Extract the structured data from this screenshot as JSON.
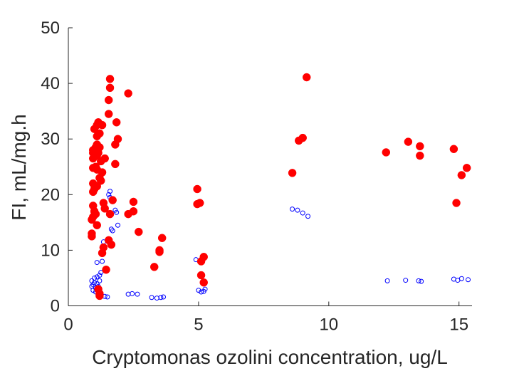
{
  "chart_data": {
    "type": "scatter",
    "xlabel": "Cryptomonas ozolini concentration, ug/L",
    "ylabel": "FI, mL/mg.h",
    "xlim": [
      0,
      15.5
    ],
    "ylim": [
      0,
      50
    ],
    "xticks": [
      0,
      5,
      10,
      15
    ],
    "yticks": [
      0,
      10,
      20,
      30,
      40,
      50
    ],
    "grid": false,
    "legend": "none",
    "series": [
      {
        "marker": "filled-circle",
        "color": "#ff0000",
        "points": [
          [
            0.9,
            12.5
          ],
          [
            0.9,
            13.0
          ],
          [
            0.9,
            15.5
          ],
          [
            0.95,
            16.0
          ],
          [
            0.95,
            18.0
          ],
          [
            0.95,
            20.5
          ],
          [
            0.95,
            22.0
          ],
          [
            0.95,
            24.8
          ],
          [
            0.95,
            26.5
          ],
          [
            0.95,
            27.5
          ],
          [
            0.95,
            28.0
          ],
          [
            1.0,
            31.8
          ],
          [
            1.0,
            17.0
          ],
          [
            1.0,
            21.0
          ],
          [
            1.05,
            16.5
          ],
          [
            1.05,
            25.0
          ],
          [
            1.05,
            28.5
          ],
          [
            1.1,
            14.5
          ],
          [
            1.1,
            32.5
          ],
          [
            1.1,
            30.5
          ],
          [
            1.1,
            29.0
          ],
          [
            1.1,
            27.0
          ],
          [
            1.1,
            24.5
          ],
          [
            1.1,
            21.5
          ],
          [
            1.15,
            33.0
          ],
          [
            1.15,
            27.5
          ],
          [
            1.15,
            3.0
          ],
          [
            1.2,
            2.2
          ],
          [
            1.2,
            1.8
          ],
          [
            1.2,
            23.0
          ],
          [
            1.2,
            28.5
          ],
          [
            1.2,
            31.0
          ],
          [
            1.25,
            22.5
          ],
          [
            1.25,
            26.0
          ],
          [
            1.3,
            9.5
          ],
          [
            1.3,
            24.0
          ],
          [
            1.3,
            32.5
          ],
          [
            1.35,
            10.5
          ],
          [
            1.35,
            18.5
          ],
          [
            1.4,
            17.5
          ],
          [
            1.4,
            26.5
          ],
          [
            1.45,
            6.5
          ],
          [
            1.55,
            34.5
          ],
          [
            1.55,
            37.0
          ],
          [
            1.6,
            39.2
          ],
          [
            1.6,
            40.8
          ],
          [
            1.55,
            11.8
          ],
          [
            1.6,
            16.5
          ],
          [
            1.65,
            11.0
          ],
          [
            1.7,
            19.0
          ],
          [
            1.8,
            29.0
          ],
          [
            1.8,
            25.5
          ],
          [
            1.85,
            33.0
          ],
          [
            1.9,
            30.0
          ],
          [
            2.3,
            38.2
          ],
          [
            2.3,
            16.5
          ],
          [
            2.5,
            17.0
          ],
          [
            2.5,
            18.7
          ],
          [
            2.7,
            13.3
          ],
          [
            3.3,
            7.0
          ],
          [
            3.5,
            9.7
          ],
          [
            3.5,
            10.0
          ],
          [
            3.6,
            12.2
          ],
          [
            4.95,
            21.0
          ],
          [
            4.95,
            18.3
          ],
          [
            5.05,
            18.5
          ],
          [
            5.1,
            8.0
          ],
          [
            5.1,
            5.5
          ],
          [
            5.2,
            4.2
          ],
          [
            5.2,
            8.8
          ],
          [
            8.6,
            23.9
          ],
          [
            8.85,
            29.7
          ],
          [
            9.0,
            30.2
          ],
          [
            9.15,
            41.1
          ],
          [
            12.2,
            27.6
          ],
          [
            13.05,
            29.5
          ],
          [
            13.5,
            28.7
          ],
          [
            13.5,
            27.0
          ],
          [
            14.8,
            28.2
          ],
          [
            14.9,
            18.5
          ],
          [
            15.1,
            23.5
          ],
          [
            15.3,
            24.8
          ]
        ]
      },
      {
        "marker": "open-circle",
        "color": "#0000ff",
        "points": [
          [
            0.9,
            3.5
          ],
          [
            0.9,
            4.5
          ],
          [
            0.95,
            2.8
          ],
          [
            0.95,
            3.8
          ],
          [
            1.0,
            4.2
          ],
          [
            1.0,
            5.0
          ],
          [
            1.05,
            2.5
          ],
          [
            1.05,
            3.2
          ],
          [
            1.1,
            5.2
          ],
          [
            1.1,
            4.0
          ],
          [
            1.1,
            7.8
          ],
          [
            1.15,
            2.0
          ],
          [
            1.15,
            3.5
          ],
          [
            1.2,
            5.5
          ],
          [
            1.2,
            4.5
          ],
          [
            1.25,
            6.0
          ],
          [
            1.3,
            8.0
          ],
          [
            1.3,
            10.5
          ],
          [
            1.35,
            11.5
          ],
          [
            1.4,
            1.7
          ],
          [
            1.5,
            1.6
          ],
          [
            1.55,
            20.0
          ],
          [
            1.6,
            20.6
          ],
          [
            1.6,
            19.5
          ],
          [
            1.65,
            13.8
          ],
          [
            1.7,
            13.5
          ],
          [
            1.8,
            17.2
          ],
          [
            1.85,
            16.8
          ],
          [
            1.9,
            14.5
          ],
          [
            2.3,
            2.1
          ],
          [
            2.45,
            2.2
          ],
          [
            2.65,
            2.1
          ],
          [
            3.2,
            1.5
          ],
          [
            3.4,
            1.4
          ],
          [
            3.55,
            1.5
          ],
          [
            3.65,
            1.6
          ],
          [
            4.9,
            8.3
          ],
          [
            5.0,
            2.8
          ],
          [
            5.1,
            2.5
          ],
          [
            5.15,
            8.6
          ],
          [
            5.2,
            2.6
          ],
          [
            5.25,
            3.0
          ],
          [
            8.6,
            17.4
          ],
          [
            8.8,
            17.2
          ],
          [
            9.0,
            16.7
          ],
          [
            9.2,
            16.1
          ],
          [
            12.25,
            4.5
          ],
          [
            12.95,
            4.6
          ],
          [
            13.45,
            4.5
          ],
          [
            13.55,
            4.4
          ],
          [
            14.8,
            4.8
          ],
          [
            14.95,
            4.6
          ],
          [
            15.1,
            4.9
          ],
          [
            15.35,
            4.7
          ]
        ]
      }
    ]
  }
}
